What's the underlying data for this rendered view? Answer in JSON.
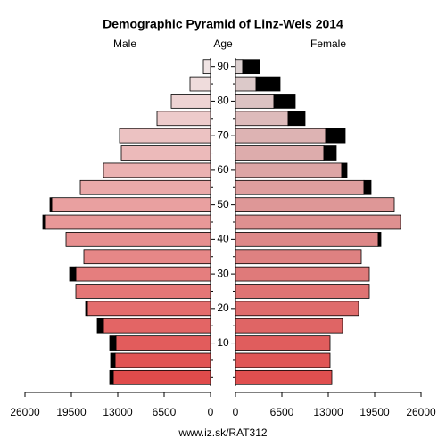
{
  "chart_data": {
    "type": "pyramid",
    "title": "Demographic Pyramid of Linz-Wels 2014",
    "left_label": "Male",
    "center_label": "Age",
    "right_label": "Female",
    "source": "www.iz.sk/RAT312",
    "categories": [
      null,
      null,
      "10",
      null,
      "20",
      null,
      "30",
      null,
      "40",
      null,
      "50",
      null,
      "60",
      null,
      "70",
      null,
      "80",
      null,
      "90"
    ],
    "extra_color": "#000000",
    "male": {
      "xlim": [
        0,
        26000
      ],
      "xticks": [
        26000,
        19500,
        13000,
        6500,
        0
      ],
      "color_low": "#e04b4b",
      "color_high": "#f0e4e4",
      "values": [
        13625,
        13375,
        13250,
        15000,
        17250,
        18875,
        18875,
        17750,
        20250,
        23125,
        22250,
        18250,
        15000,
        12500,
        12750,
        7500,
        5500,
        2875,
        1000
      ],
      "extra": [
        500,
        625,
        875,
        875,
        250,
        0,
        875,
        0,
        0,
        375,
        250,
        0,
        0,
        0,
        0,
        0,
        0,
        0,
        0
      ]
    },
    "female": {
      "xlim": [
        0,
        26000
      ],
      "xticks": [
        0,
        6500,
        13000,
        19500,
        26000
      ],
      "color_low": "#e04f4f",
      "color_high": "#dcd0d0",
      "values": [
        13500,
        13250,
        13250,
        15000,
        17250,
        18750,
        18750,
        17625,
        20000,
        23125,
        22250,
        18000,
        14875,
        12375,
        12625,
        7375,
        5375,
        2875,
        1000
      ],
      "extra": [
        0,
        0,
        0,
        0,
        0,
        0,
        0,
        0,
        375,
        0,
        0,
        1000,
        750,
        1750,
        2750,
        2375,
        3000,
        3375,
        2375
      ]
    }
  }
}
